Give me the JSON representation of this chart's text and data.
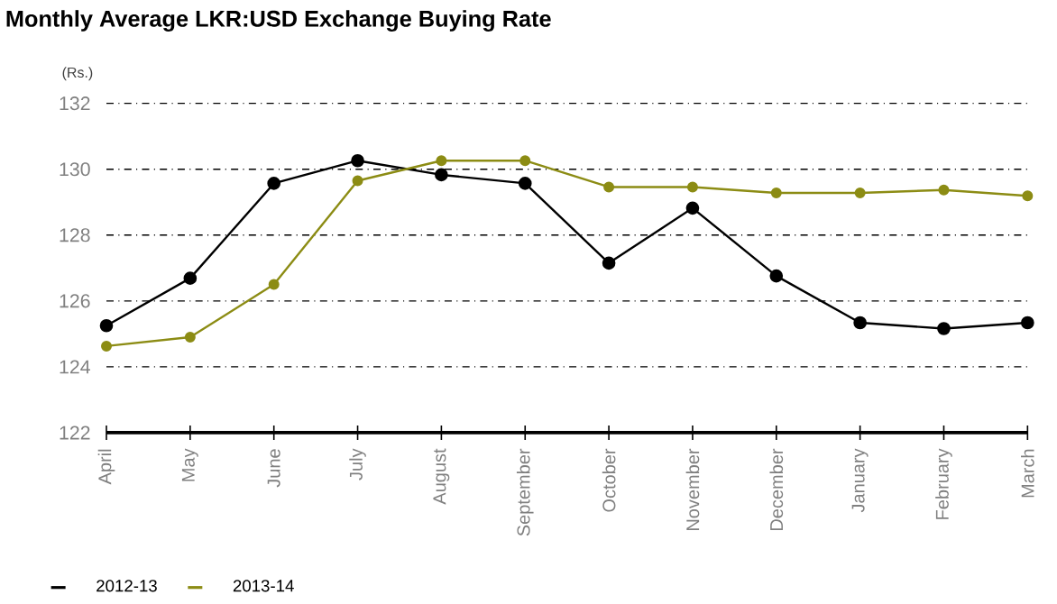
{
  "chart_data": {
    "type": "line",
    "title": "Monthly Average LKR:USD Exchange Buying Rate",
    "ylabel": "(Rs.)",
    "categories": [
      "April",
      "May",
      "June",
      "July",
      "August",
      "September",
      "October",
      "November",
      "December",
      "January",
      "February",
      "March"
    ],
    "series": [
      {
        "name": "2012-13",
        "color": "#000000",
        "values": [
          125.25,
          126.69,
          129.57,
          130.26,
          129.83,
          129.57,
          127.15,
          128.82,
          126.76,
          125.34,
          125.16,
          125.34
        ]
      },
      {
        "name": "2013-14",
        "color": "#8c8c14",
        "values": [
          124.63,
          124.9,
          126.5,
          129.65,
          130.26,
          130.26,
          129.46,
          129.46,
          129.28,
          129.28,
          129.37,
          129.19
        ]
      }
    ],
    "ylim": [
      122,
      132
    ],
    "yticks": [
      122,
      124,
      126,
      128,
      130,
      132
    ],
    "grid": "y",
    "legend": "bottom left",
    "marker": "circle",
    "line_style": "solid"
  }
}
